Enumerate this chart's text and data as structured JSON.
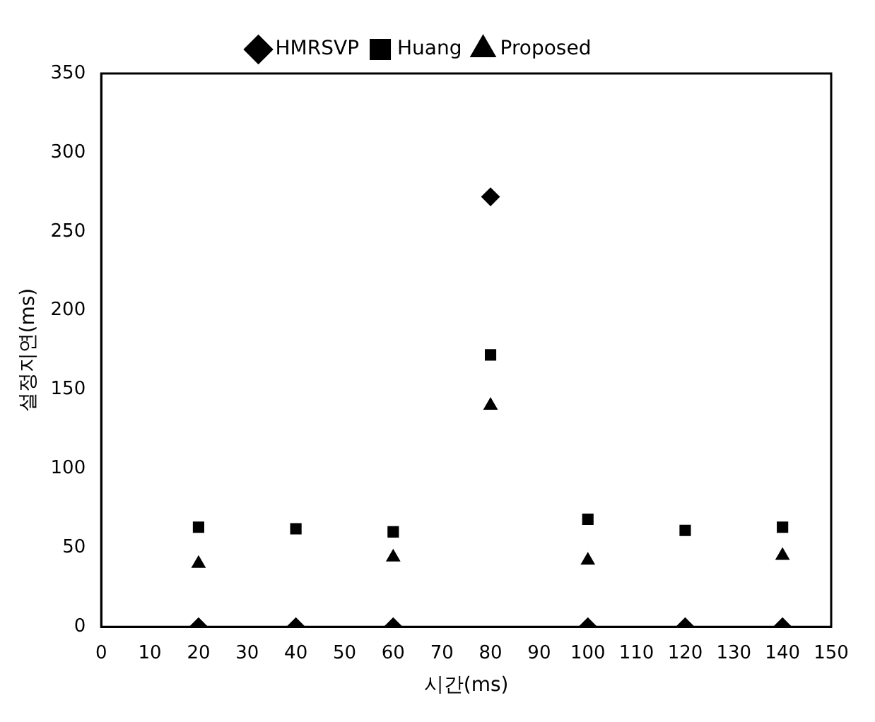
{
  "chart_data": {
    "type": "scatter",
    "xlabel": "시간(ms)",
    "ylabel": "설정지연(ms)",
    "x": [
      20,
      40,
      60,
      80,
      100,
      120,
      140
    ],
    "series": [
      {
        "name": "HMRSVP",
        "color": "#000000",
        "marker": "diamond",
        "values": [
          0,
          0,
          0,
          272,
          0,
          0,
          0
        ]
      },
      {
        "name": "Huang",
        "color": "#000000",
        "marker": "square",
        "values": [
          63,
          62,
          60,
          172,
          68,
          61,
          63
        ]
      },
      {
        "name": "Proposed",
        "color": "#000000",
        "marker": "triangle",
        "values": [
          40,
          null,
          44,
          140,
          42,
          null,
          45
        ]
      }
    ],
    "xlim": [
      0,
      150
    ],
    "xticks": [
      0,
      10,
      20,
      30,
      40,
      50,
      60,
      70,
      80,
      90,
      100,
      110,
      120,
      130,
      140,
      150
    ],
    "ylim": [
      0,
      350
    ],
    "yticks": [
      0,
      50,
      100,
      150,
      200,
      250,
      300,
      350
    ],
    "grid": false,
    "legend": "top"
  }
}
